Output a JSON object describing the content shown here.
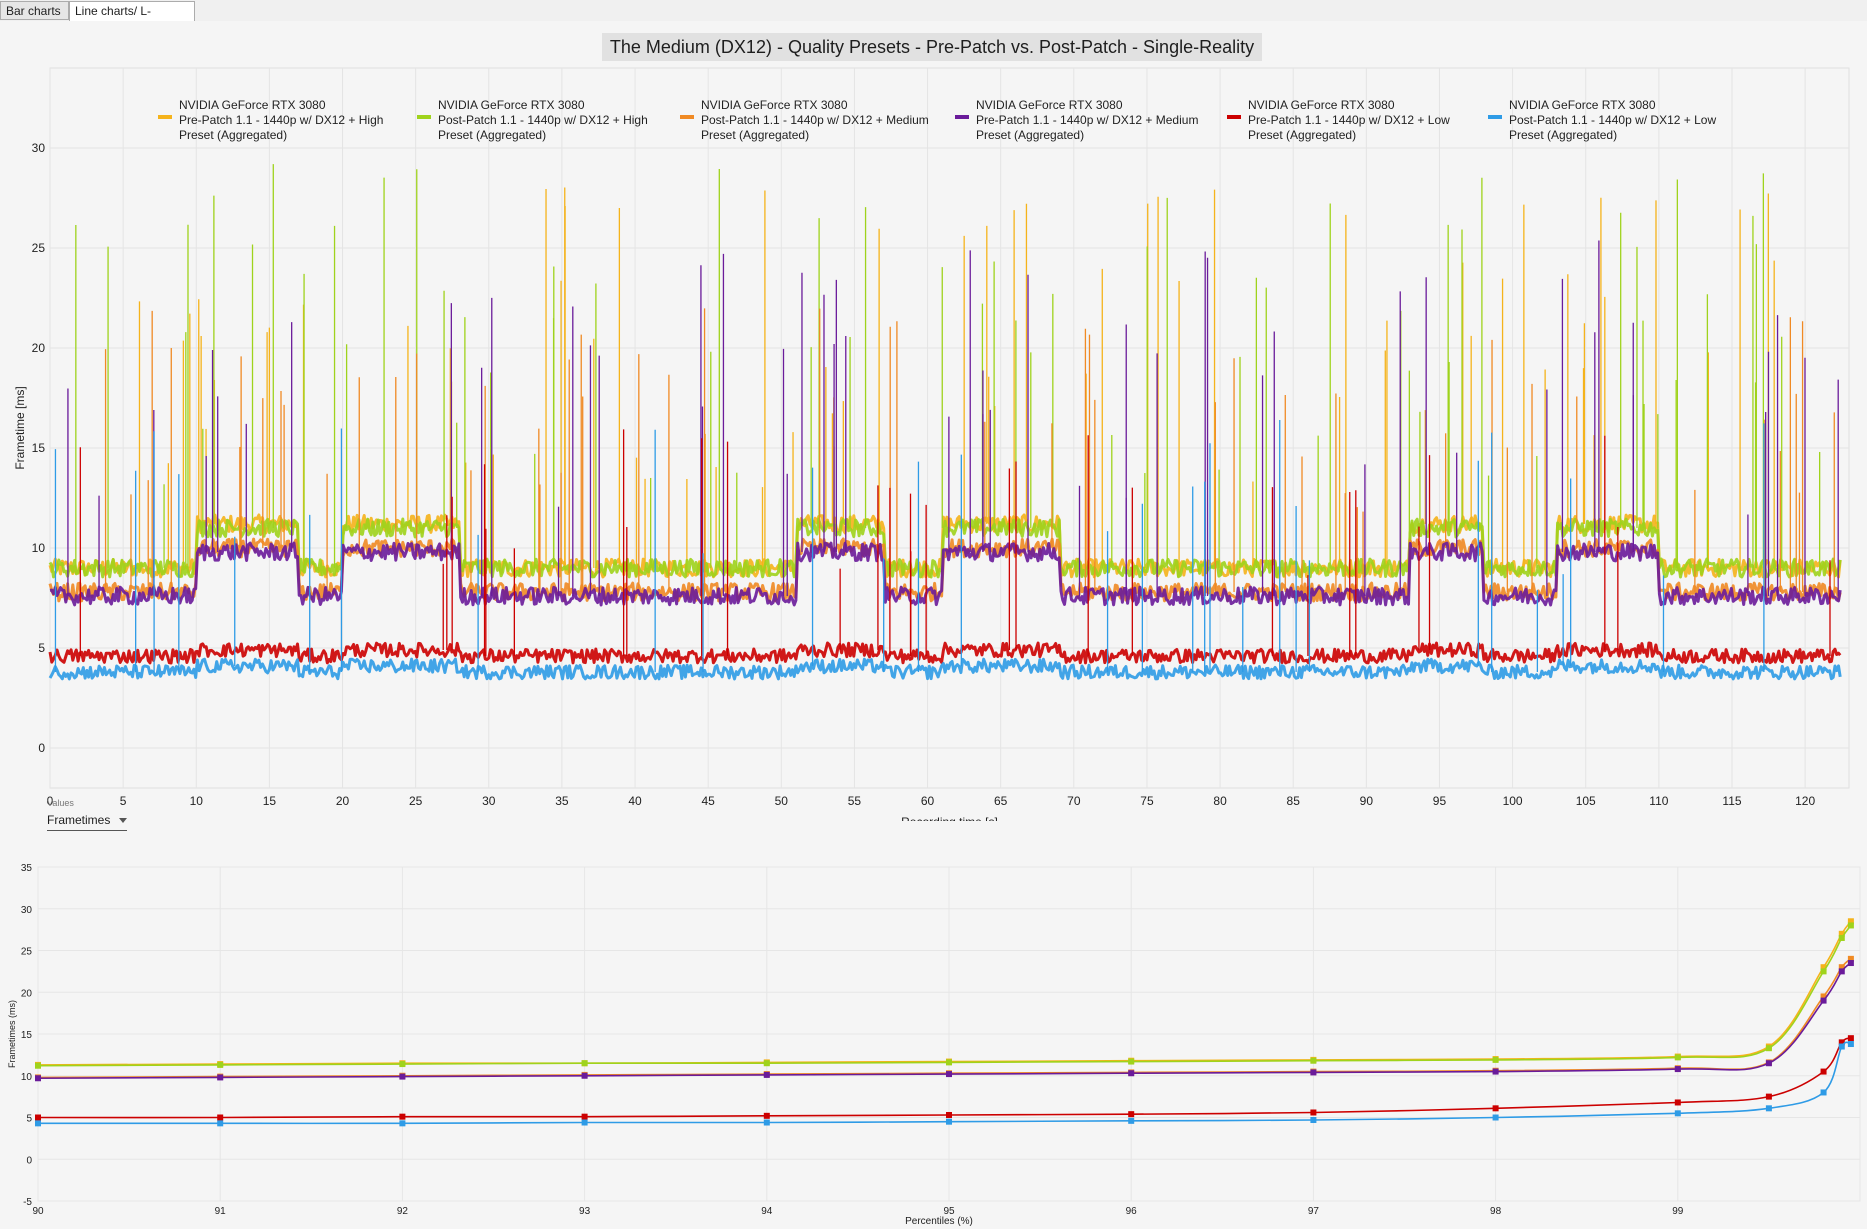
{
  "tabs": [
    {
      "label": "Bar charts"
    },
    {
      "label": "Line charts/ L-shapes"
    }
  ],
  "controls": {
    "values_label": "Values",
    "values_selected": "Frametimes"
  },
  "colors": {
    "high_pre": "#f5b31b",
    "high_post": "#9fd31c",
    "medium_pre": "#f08a24",
    "medium_post": "#6a1b9a",
    "low_pre": "#cc0000",
    "low_post": "#2e9be6"
  },
  "chart_data": [
    {
      "type": "line",
      "title": "The Medium (DX12) - Quality Presets - Pre-Patch vs. Post-Patch - Single-Reality",
      "xlabel": "Recording time [s]",
      "ylabel": "Frametime [ms]",
      "xlim": [
        0,
        123
      ],
      "ylim": [
        -2,
        34
      ],
      "xticks": [
        0,
        5,
        10,
        15,
        20,
        25,
        30,
        35,
        40,
        45,
        50,
        55,
        60,
        65,
        70,
        75,
        80,
        85,
        90,
        95,
        100,
        105,
        110,
        115,
        120
      ],
      "yticks": [
        0,
        5,
        10,
        15,
        20,
        25,
        30
      ],
      "grid": true,
      "legend_position": "top",
      "series": [
        {
          "name_line1": "NVIDIA GeForce RTX 3080",
          "name_line2": "Pre-Patch 1.1 - 1440p w/ DX12 + High",
          "name_line3": "Preset (Aggregated)",
          "color": "#f5b31b",
          "baseline_low": 9.0,
          "baseline_high": 11.2,
          "spike_max": 28.5
        },
        {
          "name_line1": "NVIDIA GeForce RTX 3080",
          "name_line2": "Post-Patch 1.1 - 1440p w/ DX12 + High",
          "name_line3": "Preset (Aggregated)",
          "color": "#9fd31c",
          "baseline_low": 9.0,
          "baseline_high": 11.0,
          "spike_max": 29.5
        },
        {
          "name_line1": "NVIDIA GeForce RTX 3080",
          "name_line2": "Post-Patch 1.1 - 1440p w/ DX12 + Medium",
          "name_line3": "Preset (Aggregated)",
          "color": "#f08a24",
          "baseline_low": 7.8,
          "baseline_high": 10.0,
          "spike_max": 22.0
        },
        {
          "name_line1": "NVIDIA GeForce RTX 3080",
          "name_line2": "Pre-Patch 1.1 - 1440p w/ DX12 + Medium",
          "name_line3": "Preset (Aggregated)",
          "color": "#6a1b9a",
          "baseline_low": 7.6,
          "baseline_high": 9.8,
          "spike_max": 25.5
        },
        {
          "name_line1": "NVIDIA GeForce RTX 3080",
          "name_line2": "Pre-Patch 1.1 - 1440p w/ DX12 + Low",
          "name_line3": "Preset (Aggregated)",
          "color": "#cc0000",
          "baseline_low": 4.6,
          "baseline_high": 4.9,
          "spike_max": 16.0
        },
        {
          "name_line1": "NVIDIA GeForce RTX 3080",
          "name_line2": "Post-Patch 1.1 - 1440p w/ DX12 + Low",
          "name_line3": "Preset (Aggregated)",
          "color": "#2e9be6",
          "baseline_low": 3.8,
          "baseline_high": 4.1,
          "spike_max": 16.5
        }
      ],
      "high_segments": [
        [
          10,
          17
        ],
        [
          20,
          28
        ],
        [
          51,
          57
        ],
        [
          61,
          69
        ],
        [
          93,
          98
        ],
        [
          103,
          110
        ]
      ]
    },
    {
      "type": "line",
      "title": "",
      "xlabel": "Percentiles (%)",
      "ylabel": "Frametimes (ms)",
      "xlim": [
        90,
        100
      ],
      "ylim": [
        -5,
        35
      ],
      "xticks": [
        90,
        91,
        92,
        93,
        94,
        95,
        96,
        97,
        98,
        99
      ],
      "yticks": [
        -5,
        0,
        5,
        10,
        15,
        20,
        25,
        30,
        35
      ],
      "x": [
        90,
        91,
        92,
        93,
        94,
        95,
        96,
        97,
        98,
        99,
        99.5,
        99.8,
        99.9,
        99.95
      ],
      "series": [
        {
          "color": "#f5b31b",
          "values": [
            11.3,
            11.4,
            11.5,
            11.5,
            11.6,
            11.7,
            11.8,
            11.9,
            12.0,
            12.3,
            13.5,
            23.0,
            27.0,
            28.5
          ]
        },
        {
          "color": "#9fd31c",
          "values": [
            11.2,
            11.3,
            11.4,
            11.5,
            11.5,
            11.6,
            11.7,
            11.8,
            11.9,
            12.2,
            13.3,
            22.5,
            26.5,
            28.0
          ]
        },
        {
          "color": "#f08a24",
          "values": [
            9.8,
            9.9,
            10.0,
            10.1,
            10.2,
            10.3,
            10.4,
            10.5,
            10.6,
            10.9,
            11.6,
            19.5,
            23.0,
            24.0
          ]
        },
        {
          "color": "#6a1b9a",
          "values": [
            9.7,
            9.8,
            9.9,
            10.0,
            10.1,
            10.2,
            10.3,
            10.4,
            10.5,
            10.8,
            11.5,
            19.0,
            22.5,
            23.5
          ]
        },
        {
          "color": "#cc0000",
          "values": [
            5.0,
            5.0,
            5.1,
            5.1,
            5.2,
            5.3,
            5.4,
            5.6,
            6.1,
            6.8,
            7.5,
            10.5,
            14.0,
            14.5
          ]
        },
        {
          "color": "#2e9be6",
          "values": [
            4.3,
            4.3,
            4.3,
            4.4,
            4.4,
            4.5,
            4.6,
            4.7,
            5.0,
            5.5,
            6.1,
            8.0,
            13.5,
            13.8
          ]
        }
      ]
    }
  ]
}
